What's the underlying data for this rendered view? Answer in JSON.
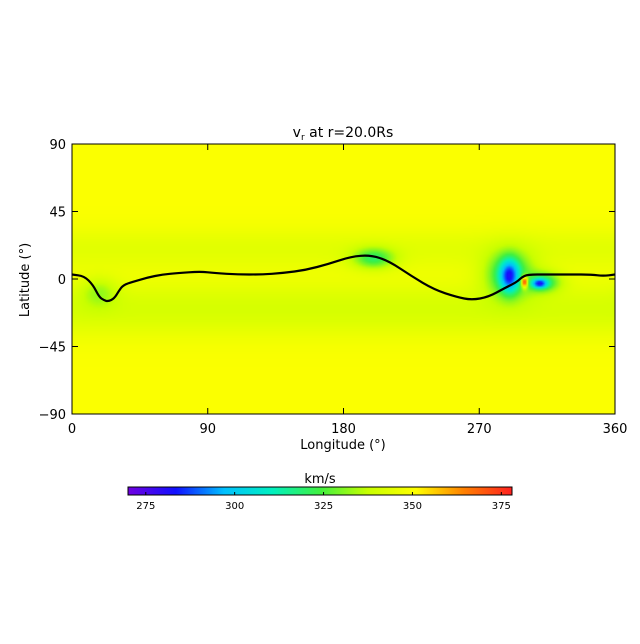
{
  "chart_data": {
    "type": "heatmap",
    "title": "v",
    "title_subscript": "r",
    "title_rest": " at r=20.0Rs",
    "xlabel": "Longitude (°)",
    "ylabel": "Latitude (°)",
    "xlim": [
      0,
      360
    ],
    "ylim": [
      -90,
      90
    ],
    "x_ticks": [
      0,
      90,
      180,
      270,
      360
    ],
    "y_ticks": [
      -90,
      -45,
      0,
      45,
      90
    ],
    "y_tick_labels": [
      "−90",
      "−45",
      "0",
      "45",
      "90"
    ],
    "background_value": 350,
    "features": [
      {
        "kind": "band",
        "lat": -20,
        "lat_width": 18,
        "value": 335
      },
      {
        "kind": "band",
        "lat": 20,
        "lat_width": 14,
        "value": 340
      },
      {
        "kind": "blob",
        "lon": 200,
        "lat": 14,
        "radius_lon": 14,
        "radius_lat": 7,
        "value": 320
      },
      {
        "kind": "blob",
        "lon": 18,
        "lat": -10,
        "radius_lon": 12,
        "radius_lat": 10,
        "value": 332
      },
      {
        "kind": "blob",
        "lon": 290,
        "lat": 3,
        "radius_lon": 16,
        "radius_lat": 16,
        "value": 316
      },
      {
        "kind": "blob",
        "lon": 290,
        "lat": 2,
        "radius_lon": 6,
        "radius_lat": 10,
        "value": 280
      },
      {
        "kind": "blob",
        "lon": 312,
        "lat": -2,
        "radius_lon": 12,
        "radius_lat": 7,
        "value": 318
      },
      {
        "kind": "blob",
        "lon": 310,
        "lat": -3,
        "radius_lon": 5,
        "radius_lat": 3,
        "value": 280
      },
      {
        "kind": "blob",
        "lon": 300,
        "lat": -2,
        "radius_lon": 2,
        "radius_lat": 4,
        "value": 372
      }
    ],
    "neutral_line": [
      [
        0,
        3
      ],
      [
        8,
        2
      ],
      [
        14,
        -4
      ],
      [
        18,
        -12
      ],
      [
        21,
        -14
      ],
      [
        24,
        -15
      ],
      [
        28,
        -13
      ],
      [
        31,
        -8
      ],
      [
        34,
        -4
      ],
      [
        40,
        -2
      ],
      [
        50,
        1
      ],
      [
        60,
        3
      ],
      [
        70,
        4
      ],
      [
        85,
        5
      ],
      [
        95,
        4
      ],
      [
        110,
        3
      ],
      [
        125,
        3
      ],
      [
        140,
        4
      ],
      [
        155,
        6
      ],
      [
        170,
        10
      ],
      [
        185,
        15
      ],
      [
        198,
        16
      ],
      [
        210,
        12
      ],
      [
        225,
        2
      ],
      [
        240,
        -7
      ],
      [
        255,
        -12
      ],
      [
        265,
        -14
      ],
      [
        276,
        -12
      ],
      [
        287,
        -6
      ],
      [
        293,
        -3
      ],
      [
        296,
        -1
      ],
      [
        298,
        1
      ],
      [
        302,
        3
      ],
      [
        315,
        3
      ],
      [
        330,
        3
      ],
      [
        345,
        3
      ],
      [
        352,
        2
      ],
      [
        360,
        3
      ]
    ],
    "colorbar": {
      "label": "km/s",
      "range": [
        270,
        378
      ],
      "ticks": [
        275,
        300,
        325,
        350,
        375
      ],
      "stops": [
        "#7000e0",
        "#1010ff",
        "#00c0ff",
        "#00f0c0",
        "#40f040",
        "#c8ff00",
        "#ffff00",
        "#ff8000",
        "#ff2020"
      ]
    }
  }
}
